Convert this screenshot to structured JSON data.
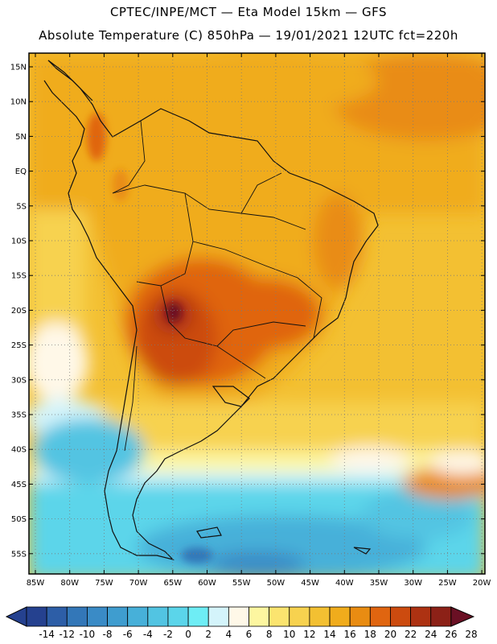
{
  "header": {
    "line1": "CPTEC/INPE/MCT —  Eta Model 15km — GFS",
    "line2": "Absolute Temperature (C) 850hPa — 19/01/2021 12UTC fct=220h"
  },
  "map": {
    "lat_labels": [
      "15N",
      "10N",
      "5N",
      "EQ",
      "5S",
      "10S",
      "15S",
      "20S",
      "25S",
      "30S",
      "35S",
      "40S",
      "45S",
      "50S",
      "55S"
    ],
    "lon_labels": [
      "85W",
      "80W",
      "75W",
      "70W",
      "65W",
      "60W",
      "55W",
      "50W",
      "45W",
      "40W",
      "35W",
      "30W",
      "25W",
      "20W"
    ]
  },
  "colorbar": {
    "labels": [
      "-14",
      "-12",
      "-10",
      "-8",
      "-6",
      "-4",
      "-2",
      "0",
      "2",
      "4",
      "6",
      "8",
      "10",
      "12",
      "14",
      "16",
      "18",
      "20",
      "22",
      "24",
      "26",
      "28"
    ],
    "colors": [
      "#25418f",
      "#2d5ea7",
      "#3377b8",
      "#3a8bc6",
      "#3f9dcf",
      "#47b0d9",
      "#52c4e2",
      "#5bd5ea",
      "#6eedf5",
      "#d4f4fb",
      "#fff8e8",
      "#fdf6a0",
      "#fbe46f",
      "#f7d24f",
      "#f3c032",
      "#f0ac1c",
      "#e98c12",
      "#e06510",
      "#cc4b0f",
      "#ad3212",
      "#8c2117",
      "#6a1024"
    ]
  }
}
